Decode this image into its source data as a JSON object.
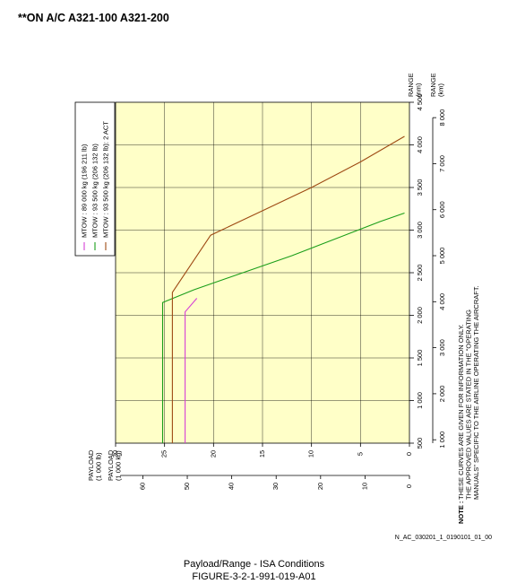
{
  "header": {
    "text": "**ON A/C A321-100 A321-200"
  },
  "legend": [
    {
      "label": "MTOW : 89 000 kg (196 211 lb)",
      "color": "#d63fd6"
    },
    {
      "label": "MTOW : 93 500 kg (206 132 lb)",
      "color": "#1a9e1a"
    },
    {
      "label": "MTOW : 93 500 kg (206 132 lb): 2 ACT",
      "color": "#9e4a14"
    }
  ],
  "note": {
    "title": "NOTE :",
    "lines": [
      "THESE CURVES ARE GIVEN FOR INFORMATION ONLY.",
      "THE APPROVED VALUES ARE STATED IN THE \"OPERATING",
      "MANUALS\" SPECIFIC TO THE AIRLINE OPERATING THE AIRCRAFT."
    ]
  },
  "doc_ref": "N_AC_030201_1_0190101_01_00",
  "caption": {
    "line1": "Payload/Range - ISA Conditions",
    "line2": "FIGURE-3-2-1-991-019-A01"
  },
  "chart_data": {
    "type": "line",
    "orientation": "rotated 90° counter-clockwise",
    "axes": {
      "range_nm": {
        "label": [
          "RANGE",
          "(nm)"
        ],
        "ticks": [
          500,
          1000,
          1500,
          2000,
          2500,
          3000,
          3500,
          4000,
          4500
        ],
        "tick_labels": [
          "500",
          "1 000",
          "1 500",
          "2 000",
          "2 500",
          "3 000",
          "3 500",
          "4 000",
          "4 500"
        ],
        "lim": [
          500,
          4500
        ]
      },
      "range_km": {
        "label": [
          "RANGE",
          "(km)"
        ],
        "ticks": [
          1000,
          2000,
          3000,
          4000,
          5000,
          6000,
          7000,
          8000
        ],
        "tick_labels": [
          "1 000",
          "2 000",
          "3 000",
          "4 000",
          "5 000",
          "6 000",
          "7 000",
          "8 000"
        ]
      },
      "payload_kg": {
        "label": [
          "PAYLOAD",
          "(1 000 kg)"
        ],
        "ticks": [
          0,
          5,
          10,
          15,
          20,
          25,
          30
        ],
        "tick_labels": [
          "0",
          "5",
          "10",
          "15",
          "20",
          "25",
          "30"
        ],
        "lim": [
          0,
          30
        ]
      },
      "payload_lb": {
        "label": [
          "PAYLOAD",
          "(1 000 lb)"
        ],
        "ticks": [
          0,
          10,
          20,
          30,
          40,
          50,
          60
        ],
        "tick_labels": [
          "0",
          "10",
          "20",
          "30",
          "40",
          "50",
          "60"
        ]
      }
    },
    "grid": true,
    "background": "#ffffc8",
    "series": [
      {
        "name": "MTOW : 89 000 kg (196 211 lb)",
        "color": "#d63fd6",
        "points": [
          [
            500,
            22.9
          ],
          [
            2040,
            22.9
          ],
          [
            2200,
            21.7
          ]
        ]
      },
      {
        "name": "MTOW : 93 500 kg (206 132 lb)",
        "color": "#1a9e1a",
        "points": [
          [
            500,
            25.2
          ],
          [
            2150,
            25.2
          ],
          [
            2300,
            22
          ],
          [
            2500,
            17
          ],
          [
            2700,
            12
          ],
          [
            2900,
            7.5
          ],
          [
            3100,
            3
          ],
          [
            3200,
            0.5
          ]
        ]
      },
      {
        "name": "MTOW : 93 500 kg (206 132 lb): 2 ACT",
        "color": "#9e4a14",
        "points": [
          [
            500,
            24.2
          ],
          [
            2270,
            24.2
          ],
          [
            2940,
            20.3
          ],
          [
            3200,
            15.5
          ],
          [
            3500,
            10
          ],
          [
            3800,
            5
          ],
          [
            4100,
            0.5
          ]
        ]
      }
    ]
  }
}
